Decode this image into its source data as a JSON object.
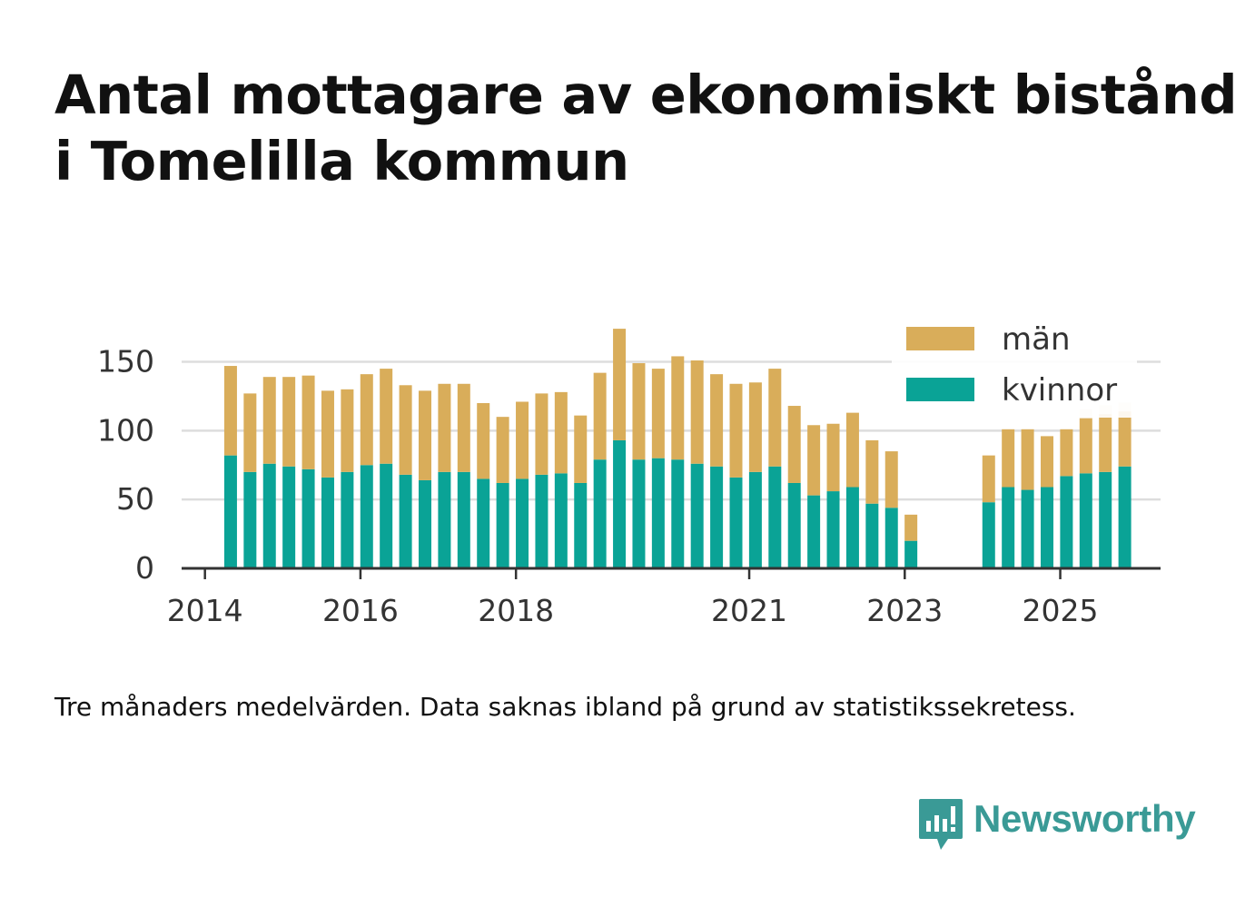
{
  "title_line1": "Antal mottagare av ekonomiskt bistånd",
  "title_line2": "i Tomelilla kommun",
  "caption": "Tre månaders medelvärden. Data saknas ibland på grund av statistikssekretess.",
  "brand": {
    "name": "Newsworthy",
    "icon": "newsworthy-logo-icon",
    "color": "#3a9a96"
  },
  "colors": {
    "men": "#d9ad5a",
    "women": "#0aa396",
    "grid": "#dddddd",
    "axis": "#333333",
    "text": "#333333"
  },
  "chart_data": {
    "type": "bar",
    "stacked": true,
    "title": "Antal mottagare av ekonomiskt bistånd i Tomelilla kommun",
    "xlabel": "",
    "ylabel": "",
    "ylim": [
      0,
      180
    ],
    "yticks": [
      0,
      50,
      100,
      150
    ],
    "grid": true,
    "legend_position": "top-right",
    "xticks": [
      {
        "label": "2014",
        "x": 2014.0
      },
      {
        "label": "2016",
        "x": 2016.0
      },
      {
        "label": "2018",
        "x": 2018.0
      },
      {
        "label": "2021",
        "x": 2021.0
      },
      {
        "label": "2023",
        "x": 2023.0
      },
      {
        "label": "2025",
        "x": 2025.0
      }
    ],
    "x": [
      2014.33,
      2014.58,
      2014.83,
      2015.08,
      2015.33,
      2015.58,
      2015.83,
      2016.08,
      2016.33,
      2016.58,
      2016.83,
      2017.08,
      2017.33,
      2017.58,
      2017.83,
      2018.08,
      2018.33,
      2018.58,
      2018.83,
      2019.08,
      2019.33,
      2019.58,
      2019.83,
      2020.08,
      2020.33,
      2020.58,
      2020.83,
      2021.08,
      2021.33,
      2021.58,
      2021.83,
      2022.08,
      2022.33,
      2022.58,
      2022.83,
      2023.08,
      2024.08,
      2024.33,
      2024.58,
      2024.83,
      2025.08,
      2025.33,
      2025.58,
      2025.83
    ],
    "series": [
      {
        "name": "kvinnor",
        "values": [
          82,
          70,
          76,
          74,
          72,
          66,
          70,
          75,
          76,
          68,
          64,
          70,
          70,
          65,
          62,
          65,
          68,
          69,
          62,
          79,
          93,
          79,
          80,
          79,
          76,
          74,
          66,
          70,
          74,
          62,
          53,
          56,
          59,
          47,
          44,
          20,
          48,
          59,
          57,
          59,
          67,
          69,
          70,
          74
        ]
      },
      {
        "name": "män",
        "values": [
          65,
          57,
          63,
          65,
          68,
          63,
          60,
          66,
          69,
          65,
          65,
          64,
          64,
          55,
          48,
          56,
          59,
          59,
          49,
          63,
          81,
          70,
          65,
          75,
          75,
          67,
          68,
          65,
          71,
          56,
          51,
          49,
          54,
          46,
          41,
          19,
          34,
          42,
          44,
          37,
          34,
          40,
          42,
          40
        ]
      }
    ],
    "partial_from_index": 41,
    "legend": [
      {
        "name": "män",
        "label": "män"
      },
      {
        "name": "kvinnor",
        "label": "kvinnor"
      }
    ]
  }
}
